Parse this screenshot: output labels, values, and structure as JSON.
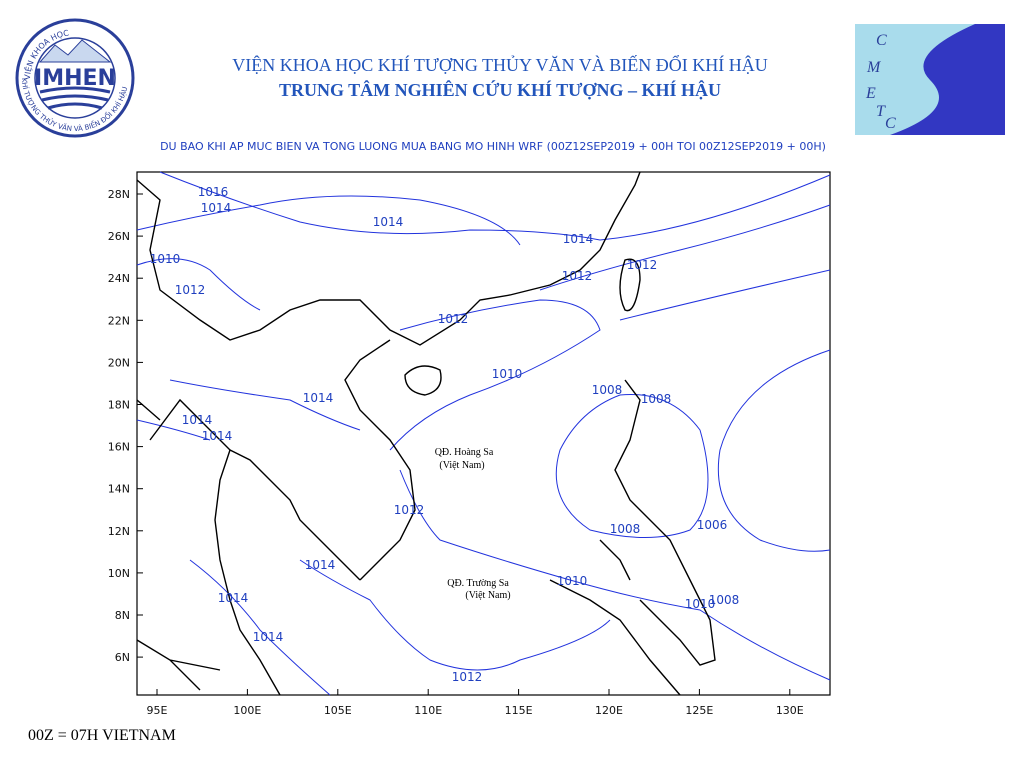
{
  "header": {
    "institute": "VIỆN KHOA HỌC KHÍ TƯỢNG THỦY VĂN VÀ BIẾN ĐỔI KHÍ HẬU",
    "center": "TRUNG TÂM NGHIÊN CỨU KHÍ TƯỢNG – KHÍ HẬU",
    "logo_left": {
      "name": "IMHEN",
      "ring_top": "VIỆN KHOA HỌC",
      "ring_bottom": "KHÍ TƯỢNG THỦY VĂN VÀ BIẾN ĐỔI KHÍ HẬU"
    },
    "logo_right": [
      "C",
      "M",
      "E",
      "T",
      "C"
    ]
  },
  "map": {
    "title": "DU BAO KHI AP MUC BIEN VA TONG LUONG MUA BANG MO HINH WRF (00Z12SEP2019 + 00H TOI 00Z12SEP2019 + 00H)",
    "lat_labels": [
      "28N",
      "26N",
      "24N",
      "22N",
      "20N",
      "18N",
      "16N",
      "14N",
      "12N",
      "10N",
      "8N",
      "6N"
    ],
    "lon_labels": [
      "95E",
      "100E",
      "105E",
      "110E",
      "115E",
      "120E",
      "125E",
      "130E"
    ],
    "contour_labels": [
      "1016",
      "1014",
      "1014",
      "1014",
      "1010",
      "1012",
      "1012",
      "1012",
      "1012",
      "1010",
      "1014",
      "1008",
      "1008",
      "1014",
      "1014",
      "1012",
      "1008",
      "1006",
      "1010",
      "1014",
      "1014",
      "1010",
      "1008",
      "1014",
      "1012"
    ],
    "places": [
      "QĐ. Hoàng Sa",
      "(Việt Nam)",
      "QĐ. Trường Sa",
      "(Việt Nam)"
    ]
  },
  "footer": "00Z = 07H VIETNAM"
}
